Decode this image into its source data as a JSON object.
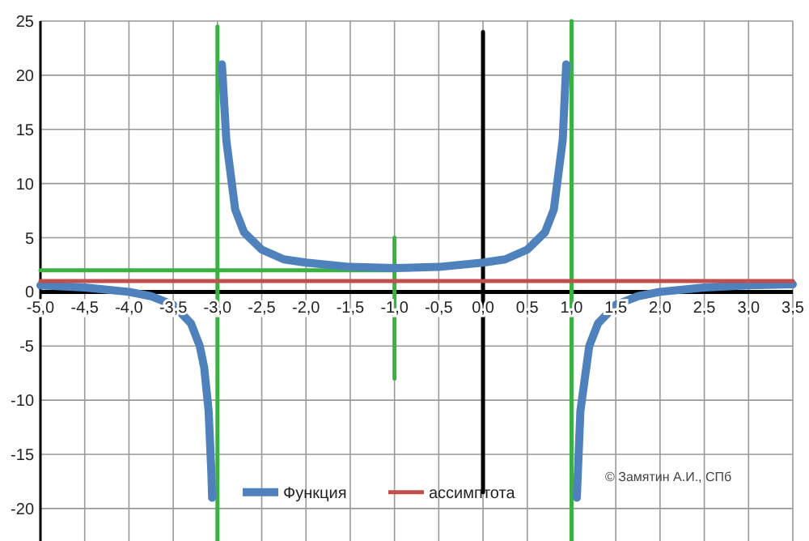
{
  "chart_data": {
    "type": "line",
    "xlim": [
      -5,
      3.5
    ],
    "ylim": [
      -23,
      25
    ],
    "xticks": [
      {
        "value": -5,
        "label": "-5,0"
      },
      {
        "value": -4.5,
        "label": "-4,5"
      },
      {
        "value": -4,
        "label": "-4,0"
      },
      {
        "value": -3.5,
        "label": "-3,5"
      },
      {
        "value": -3,
        "label": "-3,0"
      },
      {
        "value": -2.5,
        "label": "-2,5"
      },
      {
        "value": -2,
        "label": "-2,0"
      },
      {
        "value": -1.5,
        "label": "-1,5"
      },
      {
        "value": -1,
        "label": "-1,0"
      },
      {
        "value": -0.5,
        "label": "-0,5"
      },
      {
        "value": 0,
        "label": "0,0"
      },
      {
        "value": 0.5,
        "label": "0,5"
      },
      {
        "value": 1,
        "label": "1,0"
      },
      {
        "value": 1.5,
        "label": "1,5"
      },
      {
        "value": 2,
        "label": "2,0"
      },
      {
        "value": 2.5,
        "label": "2,5"
      },
      {
        "value": 3,
        "label": "3,0"
      },
      {
        "value": 3.5,
        "label": "3,5"
      }
    ],
    "yticks": [
      -20,
      -15,
      -10,
      -5,
      0,
      5,
      10,
      15,
      20,
      25
    ],
    "grid": true,
    "legend": "bottom",
    "marker": "none",
    "line_style": "solid",
    "annotations": [
      "© Замятин А.И., СПб"
    ],
    "series": [
      {
        "color": "#3cb043",
        "x": [
          -3,
          -3
        ],
        "values": [
          -23,
          24.5
        ]
      },
      {
        "color": "#3cb043",
        "x": [
          1,
          1
        ],
        "values": [
          -23,
          25
        ]
      },
      {
        "color": "#3cb043",
        "x": [
          -1,
          -1
        ],
        "values": [
          -8,
          5
        ]
      },
      {
        "color": "#3cb043",
        "x": [
          -5,
          -1
        ],
        "values": [
          2,
          2
        ]
      },
      {
        "color": "#000000",
        "x": [
          0,
          0
        ],
        "values": [
          24,
          -18.5
        ]
      },
      {
        "name": "Функция",
        "color": "#4f81bd",
        "x": [
          -5,
          -4.5,
          -4,
          -3.75,
          -3.5,
          -3.3,
          -3.2,
          -3.15,
          -3.1,
          -3.07,
          -3.06,
          -3,
          -2.95,
          -2.9,
          -2.8,
          -2.7,
          -2.5,
          -2.25,
          -2,
          -1.5,
          -1,
          -0.5,
          0,
          0.25,
          0.5,
          0.7,
          0.8,
          0.9,
          0.94,
          1,
          1.06,
          1.1,
          1.2,
          1.3,
          1.5,
          1.75,
          2,
          2.5,
          3,
          3.5
        ],
        "values": [
          0.6,
          0.4,
          0,
          -0.4,
          -1.2,
          -2.9,
          -5,
          -7,
          -11,
          -16.5,
          -19,
          null,
          21,
          14,
          7.6,
          5.5,
          3.9,
          3,
          2.7,
          2.3,
          2.2,
          2.3,
          2.7,
          3,
          3.9,
          5.5,
          7.6,
          14,
          21,
          null,
          -19,
          -11,
          -5,
          -2.9,
          -1.2,
          -0.4,
          0,
          0.4,
          0.6,
          0.7
        ]
      },
      {
        "name": "ассимптота",
        "color": "#c0504d",
        "x": [
          -5,
          3.5
        ],
        "values": [
          1,
          1
        ]
      }
    ]
  }
}
